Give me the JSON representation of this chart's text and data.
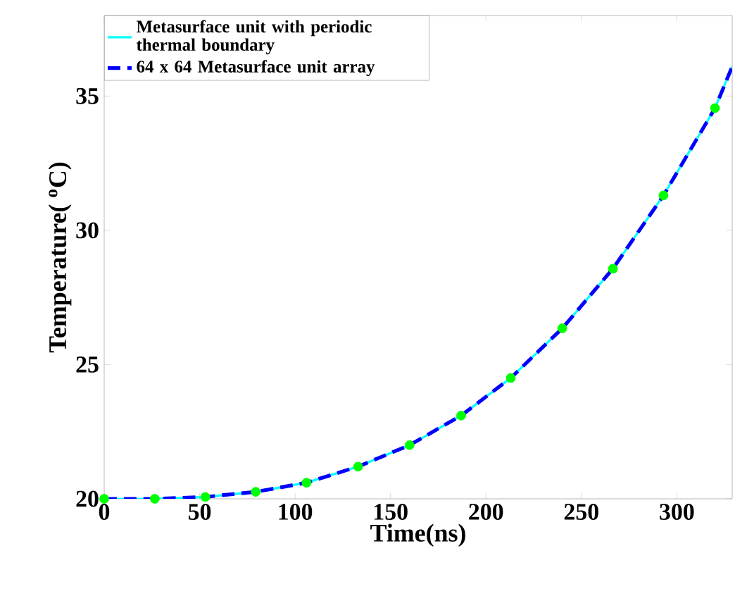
{
  "chart_data": {
    "type": "line",
    "xlabel": "Time(ns)",
    "ylabel": "Temperature( $^{o}$C)",
    "xlim": [
      0,
      329
    ],
    "ylim": [
      20,
      38
    ],
    "xticks": [
      0,
      50,
      100,
      150,
      200,
      250,
      300
    ],
    "yticks": [
      20,
      25,
      30,
      35
    ],
    "grid": false,
    "legend": "top left",
    "series": [
      {
        "name": "Metasurface unit with periodic thermal boundary",
        "color": "#00ffff",
        "line_style": "solid",
        "marker": "none",
        "x": [
          0,
          26.5,
          53,
          79.4,
          106,
          133,
          160,
          187,
          213,
          240,
          266.5,
          293,
          320,
          329
        ],
        "values": [
          20,
          20.0,
          20.07,
          20.26,
          20.6,
          21.2,
          22.0,
          23.1,
          24.5,
          26.35,
          28.57,
          31.3,
          34.55,
          36.1
        ]
      },
      {
        "name": "64 x 64 Metasurface unit array",
        "color": "#0000ff",
        "line_style": "dashed",
        "marker": "none",
        "x": [
          0,
          26.5,
          53,
          79.4,
          106,
          133,
          160,
          187,
          213,
          240,
          266.5,
          293,
          320,
          329
        ],
        "values": [
          20,
          20.0,
          20.07,
          20.26,
          20.6,
          21.2,
          22.0,
          23.1,
          24.5,
          26.35,
          28.57,
          31.3,
          34.55,
          36.1
        ]
      },
      {
        "type": "scatter",
        "color": "#00ff00",
        "marker": "circle",
        "x": [
          0,
          26.5,
          53,
          79.4,
          106,
          133,
          160,
          187,
          213,
          240,
          266.5,
          293,
          320
        ],
        "values": [
          20,
          20.0,
          20.07,
          20.26,
          20.6,
          21.2,
          22.0,
          23.1,
          24.5,
          26.35,
          28.57,
          31.3,
          34.55
        ]
      }
    ]
  }
}
